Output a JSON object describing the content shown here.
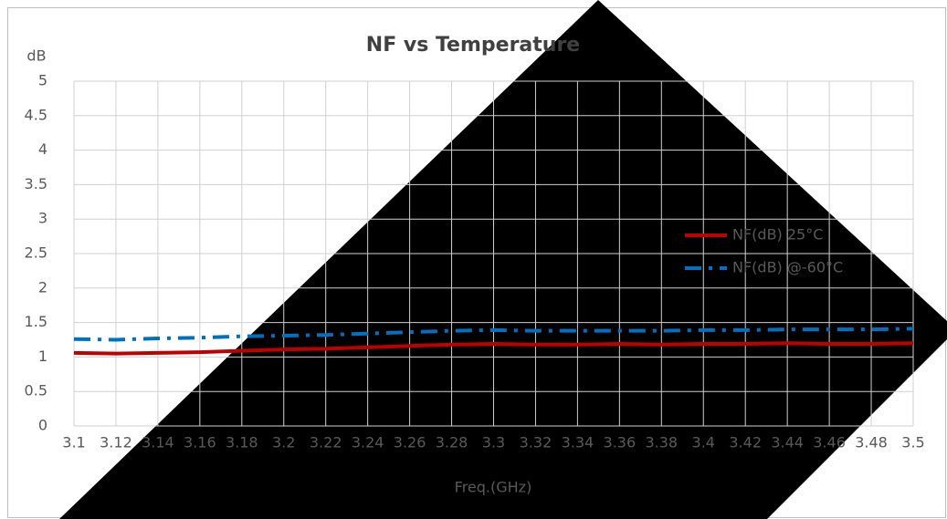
{
  "chart_data": {
    "type": "line",
    "title": "NF vs Temperature",
    "y_label": "dB",
    "x_label": "Freq.(GHz)",
    "x": [
      3.1,
      3.12,
      3.14,
      3.16,
      3.18,
      3.2,
      3.22,
      3.24,
      3.26,
      3.28,
      3.3,
      3.32,
      3.34,
      3.36,
      3.38,
      3.4,
      3.42,
      3.44,
      3.46,
      3.48,
      3.5
    ],
    "xlim": [
      3.1,
      3.5
    ],
    "xticks": [
      3.1,
      3.12,
      3.14,
      3.16,
      3.18,
      3.2,
      3.22,
      3.24,
      3.26,
      3.28,
      3.3,
      3.32,
      3.34,
      3.36,
      3.38,
      3.4,
      3.42,
      3.44,
      3.46,
      3.48,
      3.5
    ],
    "ylim": [
      0,
      5
    ],
    "yticks": [
      0,
      0.5,
      1,
      1.5,
      2,
      2.5,
      3,
      3.5,
      4,
      4.5,
      5
    ],
    "grid": true,
    "series": [
      {
        "name": "NF(dB) 25°C",
        "color": "#c00000",
        "dash": "solid",
        "values": [
          1.06,
          1.05,
          1.06,
          1.07,
          1.09,
          1.11,
          1.12,
          1.14,
          1.16,
          1.18,
          1.19,
          1.18,
          1.18,
          1.19,
          1.18,
          1.19,
          1.19,
          1.2,
          1.19,
          1.19,
          1.2
        ]
      },
      {
        "name": "NF(dB) @-60°C",
        "color": "#0070c0",
        "dash": "dashdot",
        "values": [
          1.26,
          1.25,
          1.27,
          1.28,
          1.3,
          1.31,
          1.32,
          1.34,
          1.36,
          1.38,
          1.39,
          1.38,
          1.38,
          1.38,
          1.38,
          1.39,
          1.39,
          1.4,
          1.4,
          1.4,
          1.41
        ]
      }
    ]
  }
}
